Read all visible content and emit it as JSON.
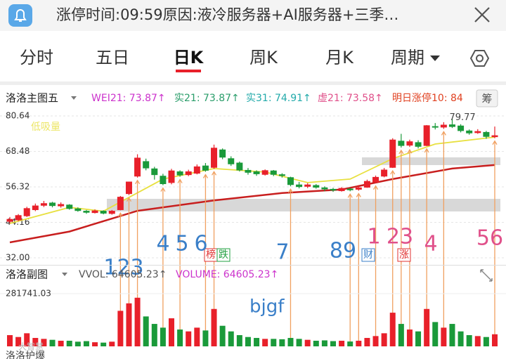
{
  "header": {
    "title": "涨停时间:09:59原因:液冷服务器+AI服务器+三季…"
  },
  "tabs": {
    "items": [
      "分时",
      "五日",
      "日K",
      "周K",
      "月K",
      "周期"
    ],
    "active": 2
  },
  "main_legend": {
    "name": "洛洛主图五",
    "items": [
      {
        "text": "WEI21: 73.87↑",
        "color": "#cc33cc"
      },
      {
        "text": "实21: 73.87↑",
        "color": "#2a9d6a"
      },
      {
        "text": "实31: 74.91↑",
        "color": "#22aaaa"
      },
      {
        "text": "虚21: 73.58↑",
        "color": "#e0508a"
      },
      {
        "text": "明日涨停10: 84",
        "color": "#e04020"
      }
    ],
    "button": "筹"
  },
  "sub_legend": {
    "name": "洛洛副图",
    "items": [
      {
        "text": "VVOL: 64605.23↑",
        "color": "#555555"
      },
      {
        "text": "VOLUME: 64605.23↑",
        "color": "#cc33cc"
      }
    ]
  },
  "overlay_text": "低吸量",
  "high_label": "79.77",
  "tags": [
    {
      "text": "榜",
      "color": "#e03030"
    },
    {
      "text": "跌",
      "color": "#22a040"
    },
    {
      "text": "财",
      "color": "#3a7fc8"
    },
    {
      "text": "涨",
      "color": "#e03030"
    }
  ],
  "annotations": [
    {
      "text": "123",
      "color": "#3a7fc8"
    },
    {
      "text": "4",
      "color": "#3a7fc8"
    },
    {
      "text": "5",
      "color": "#3a7fc8"
    },
    {
      "text": "6",
      "color": "#3a7fc8"
    },
    {
      "text": "7",
      "color": "#3a7fc8"
    },
    {
      "text": "89",
      "color": "#3a7fc8"
    },
    {
      "text": "1",
      "color": "#e0508a"
    },
    {
      "text": "23",
      "color": "#e0508a"
    },
    {
      "text": "4",
      "color": "#e0508a"
    },
    {
      "text": "56",
      "color": "#e0508a"
    }
  ],
  "note_text": "bjgf",
  "watermark": "大智慧",
  "bottom_label": "洛洛护爆",
  "chart_data": {
    "type": "candlestick",
    "up_color": "#e8202a",
    "down_color": "#1a9a3a",
    "ylim": [
      32,
      80.64
    ],
    "yticks": [
      80.64,
      68.48,
      56.32,
      44.16,
      {
        "value": 32,
        "label": "32.00"
      }
    ],
    "candles": [
      [
        44.5,
        45.2,
        46.0,
        43.8
      ],
      [
        45.0,
        46.5,
        47.0,
        44.6
      ],
      [
        46.4,
        48.9,
        49.5,
        46.0
      ],
      [
        48.5,
        49.8,
        50.6,
        48.0
      ],
      [
        50.0,
        50.6,
        51.5,
        49.4
      ],
      [
        50.8,
        49.9,
        51.2,
        49.3
      ],
      [
        49.8,
        50.3,
        51.0,
        49.2
      ],
      [
        50.1,
        48.9,
        50.4,
        48.5
      ],
      [
        48.8,
        48.2,
        49.3,
        47.8
      ],
      [
        48.0,
        47.6,
        48.4,
        47.1
      ],
      [
        47.5,
        48.1,
        48.6,
        47.2
      ],
      [
        48.0,
        47.3,
        48.3,
        46.9
      ],
      [
        47.2,
        48.0,
        48.4,
        46.8
      ],
      [
        48.5,
        52.8,
        53.2,
        48.3
      ],
      [
        54.0,
        58.0,
        58.1,
        53.5
      ],
      [
        60.0,
        66.2,
        67.5,
        59.5
      ],
      [
        65.0,
        62.8,
        66.0,
        62.0
      ],
      [
        62.5,
        60.5,
        63.2,
        58.8
      ],
      [
        60.0,
        57.4,
        60.8,
        56.9
      ],
      [
        57.8,
        61.8,
        62.5,
        57.2
      ],
      [
        61.5,
        60.4,
        62.0,
        59.8
      ],
      [
        60.5,
        61.5,
        62.2,
        60.0
      ],
      [
        61.0,
        63.2,
        64.0,
        60.6
      ],
      [
        63.5,
        62.0,
        64.5,
        61.5
      ],
      [
        63.0,
        69.6,
        70.8,
        62.5
      ],
      [
        69.0,
        66.5,
        69.5,
        65.8
      ],
      [
        66.0,
        64.2,
        66.8,
        63.5
      ],
      [
        64.5,
        62.1,
        65.0,
        61.6
      ],
      [
        62.0,
        61.3,
        62.8,
        60.5
      ],
      [
        61.5,
        60.8,
        62.0,
        60.1
      ],
      [
        60.6,
        61.9,
        62.3,
        60.2
      ],
      [
        61.8,
        60.6,
        62.1,
        60.0
      ],
      [
        60.5,
        60.2,
        61.0,
        59.5
      ],
      [
        59.5,
        57.1,
        59.8,
        56.5
      ],
      [
        57.0,
        56.4,
        58.0,
        55.8
      ],
      [
        56.5,
        57.0,
        57.6,
        55.9
      ],
      [
        56.8,
        56.2,
        57.3,
        55.7
      ],
      [
        56.0,
        55.6,
        56.5,
        54.8
      ],
      [
        55.5,
        55.2,
        56.0,
        54.6
      ],
      [
        55.0,
        55.8,
        56.2,
        54.7
      ],
      [
        55.6,
        55.3,
        56.0,
        54.8
      ],
      [
        55.5,
        56.0,
        56.6,
        55.0
      ],
      [
        56.2,
        58.2,
        58.8,
        56.0
      ],
      [
        58.0,
        59.6,
        60.2,
        57.6
      ],
      [
        60.0,
        62.1,
        62.8,
        59.6
      ],
      [
        63.0,
        72.4,
        73.0,
        62.8
      ],
      [
        72.0,
        70.5,
        74.5,
        69.8
      ],
      [
        70.6,
        71.8,
        72.5,
        70.0
      ],
      [
        71.5,
        70.2,
        72.3,
        69.5
      ],
      [
        70.5,
        77.3,
        77.5,
        70.3
      ],
      [
        77.0,
        76.9,
        78.2,
        76.0
      ],
      [
        76.8,
        77.5,
        78.5,
        76.2
      ],
      [
        77.6,
        77.0,
        79.77,
        76.5
      ],
      [
        77.2,
        75.6,
        77.8,
        75.0
      ],
      [
        75.5,
        74.8,
        76.0,
        74.2
      ],
      [
        74.9,
        75.3,
        76.1,
        74.5
      ],
      [
        75.0,
        73.6,
        75.5,
        72.8
      ],
      [
        73.5,
        73.87,
        77.0,
        73.0
      ]
    ],
    "ma": [
      {
        "color": "#e8e040",
        "x": [
          0,
          7,
          11,
          18,
          24,
          30,
          35,
          40,
          45,
          50,
          57
        ],
        "values": [
          43.8,
          49.3,
          48.0,
          59.0,
          62.6,
          61.4,
          57.8,
          59.0,
          66.0,
          71.0,
          73.4
        ]
      },
      {
        "color": "#c81e1e",
        "x": [
          0,
          7,
          15,
          24,
          32,
          39,
          45,
          52,
          57
        ],
        "values": [
          37.3,
          41.0,
          48.1,
          51.7,
          54.2,
          55.4,
          59.0,
          62.6,
          63.8
        ]
      }
    ],
    "volume": {
      "ylim": [
        0,
        281741.03
      ],
      "yticks": [
        281741.03
      ],
      "values": [
        60000,
        50000,
        70000,
        45000,
        40000,
        35000,
        30000,
        30000,
        25000,
        28000,
        22000,
        20000,
        25000,
        190000,
        230000,
        260000,
        160000,
        120000,
        100000,
        150000,
        90000,
        80000,
        100000,
        85000,
        200000,
        110000,
        80000,
        60000,
        50000,
        45000,
        40000,
        40000,
        38000,
        45000,
        40000,
        35000,
        30000,
        32000,
        28000,
        30000,
        26000,
        30000,
        45000,
        55000,
        70000,
        180000,
        120000,
        90000,
        80000,
        200000,
        130000,
        100000,
        120000,
        80000,
        60000,
        55000,
        50000,
        64605.23
      ]
    }
  }
}
